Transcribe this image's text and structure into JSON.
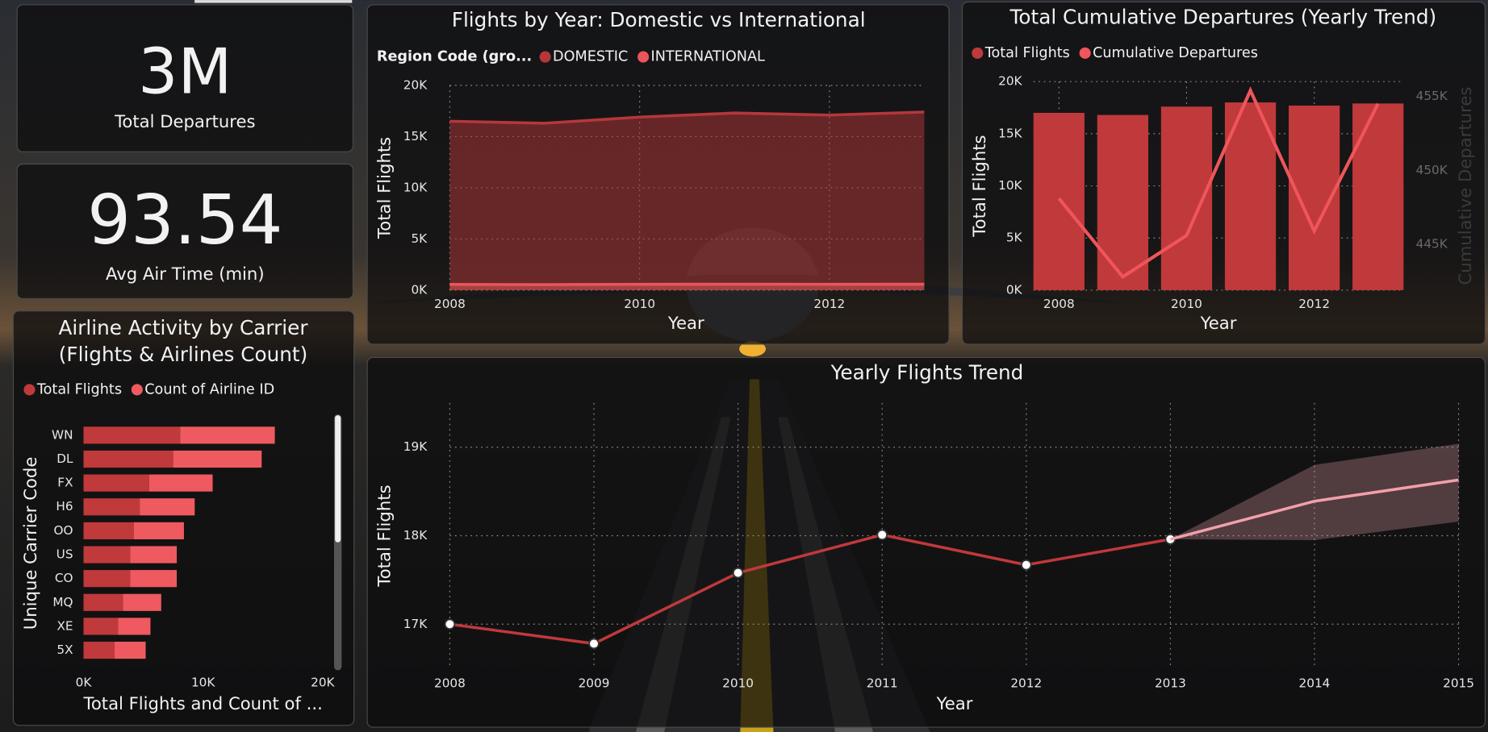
{
  "cards": [
    {
      "value": "3M",
      "label": "Total Departures"
    },
    {
      "value": "93.54",
      "label": "Avg Air Time (min)"
    }
  ],
  "chart_data": [
    {
      "type": "area",
      "title": "Flights by Year: Domestic vs International",
      "legend_title": "Region Code (gro...",
      "x": [
        2008,
        2009,
        2010,
        2011,
        2012,
        2013
      ],
      "xlim": [
        2008,
        2013
      ],
      "xticks": [
        2008,
        2010,
        2012
      ],
      "ylim": [
        0,
        20000
      ],
      "yticks": [
        {
          "value": 0,
          "label": "0K"
        },
        {
          "value": 5000,
          "label": "5K"
        },
        {
          "value": 10000,
          "label": "10K"
        },
        {
          "value": 15000,
          "label": "15K"
        },
        {
          "value": 20000,
          "label": "20K"
        }
      ],
      "x_label": "Year",
      "y_label": "Total Flights",
      "grid": true,
      "legend": "top-left",
      "series": [
        {
          "name": "DOMESTIC",
          "color": "#b5373a",
          "values": [
            16500,
            16300,
            16900,
            17300,
            17100,
            17400
          ]
        },
        {
          "name": "INTERNATIONAL",
          "color": "#e8555a",
          "values": [
            560,
            540,
            570,
            580,
            570,
            580
          ]
        }
      ]
    },
    {
      "type": "combo",
      "title": "Total Cumulative Departures (Yearly Trend)",
      "x": [
        2008,
        2009,
        2010,
        2011,
        2012,
        2013
      ],
      "xlim": [
        2007.6,
        2013.4
      ],
      "xticks": [
        2008,
        2010,
        2012
      ],
      "ylim": [
        0,
        20000
      ],
      "yticks": [
        {
          "value": 0,
          "label": "0K"
        },
        {
          "value": 5000,
          "label": "5K"
        },
        {
          "value": 10000,
          "label": "10K"
        },
        {
          "value": 15000,
          "label": "15K"
        },
        {
          "value": 20000,
          "label": "20K"
        }
      ],
      "y2lim": [
        441900,
        456000
      ],
      "y2ticks": [
        {
          "value": 445000,
          "label": "445K"
        },
        {
          "value": 450000,
          "label": "450K"
        },
        {
          "value": 455000,
          "label": "455K"
        }
      ],
      "x_label": "Year",
      "y_label": "Total Flights",
      "y2_label": "Cumulative Departures",
      "grid": true,
      "legend": "top-left",
      "series": [
        {
          "name": "Total Flights",
          "type": "bar",
          "color": "#c0393b",
          "values": [
            17000,
            16800,
            17600,
            18000,
            17700,
            17900
          ]
        },
        {
          "name": "Cumulative Departures",
          "type": "line",
          "axis": "y2",
          "color": "#f0555b",
          "values": [
            448100,
            442800,
            445600,
            455400,
            445900,
            454500
          ]
        }
      ]
    },
    {
      "type": "hbar",
      "title": [
        "Airline Activity by Carrier",
        "(Flights & Airlines Count)"
      ],
      "stacked": true,
      "categories": [
        "WN",
        "DL",
        "FX",
        "H6",
        "OO",
        "US",
        "CO",
        "MQ",
        "XE",
        "5X"
      ],
      "xlim": [
        0,
        20000
      ],
      "xticks": [
        {
          "value": 0,
          "label": "0K"
        },
        {
          "value": 10000,
          "label": "10K"
        },
        {
          "value": 20000,
          "label": "20K"
        }
      ],
      "x_label": "Total Flights and Count of ...",
      "y_label": "Unique Carrier Code",
      "legend": "top-left",
      "series": [
        {
          "name": "Total Flights",
          "color": "#c0393b",
          "values": [
            8100,
            7500,
            5500,
            4700,
            4200,
            3900,
            3900,
            3300,
            2900,
            2600
          ]
        },
        {
          "name": "Count of Airline ID",
          "color": "#ee5a5f",
          "values": [
            7900,
            7400,
            5300,
            4600,
            4200,
            3900,
            3900,
            3200,
            2700,
            2600
          ]
        }
      ]
    },
    {
      "type": "line",
      "title": "Yearly Flights Trend",
      "x": [
        2008,
        2009,
        2010,
        2011,
        2012,
        2013,
        2014,
        2015
      ],
      "xlim": [
        2008,
        2015
      ],
      "xticks": [
        2008,
        2009,
        2010,
        2011,
        2012,
        2013,
        2014,
        2015
      ],
      "ylim": [
        16500,
        19500
      ],
      "yticks": [
        {
          "value": 17000,
          "label": "17K"
        },
        {
          "value": 18000,
          "label": "18K"
        },
        {
          "value": 19000,
          "label": "19K"
        }
      ],
      "x_label": "Year",
      "y_label": "Total Flights",
      "grid": true,
      "series": [
        {
          "color": "#c0393b",
          "markers": true,
          "values": [
            17000,
            16780,
            17580,
            18010,
            17670,
            17960,
            null,
            null
          ]
        },
        {
          "color": "#f2a0a8",
          "forecast": true,
          "band_color": "#e6a0aa",
          "values": [
            null,
            null,
            null,
            null,
            null,
            17960,
            18390,
            18630
          ],
          "band": {
            "lower": [
              null,
              null,
              null,
              null,
              null,
              17960,
              17950,
              18160
            ],
            "upper": [
              null,
              null,
              null,
              null,
              null,
              17960,
              18800,
              19040
            ]
          }
        }
      ]
    }
  ]
}
